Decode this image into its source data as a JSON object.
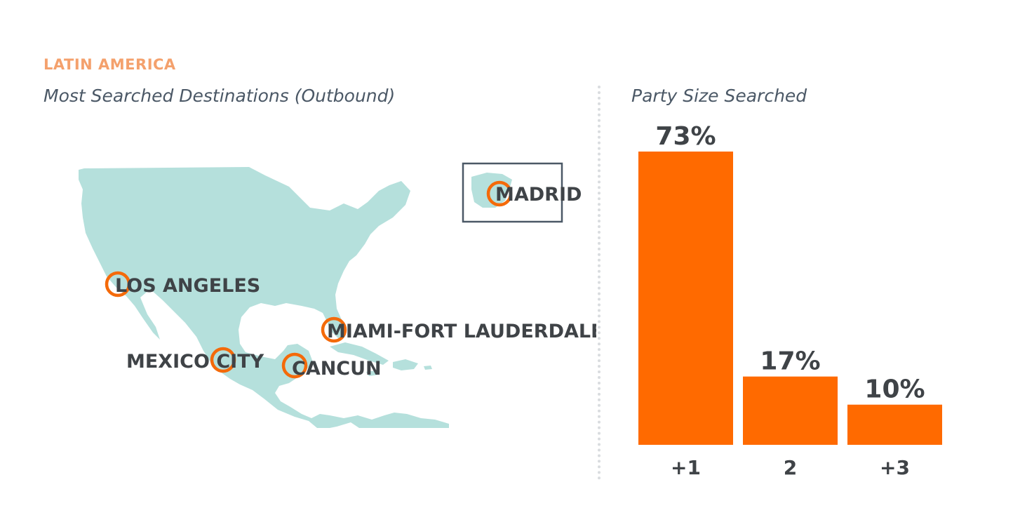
{
  "region_label": "LATIN  AMERICA",
  "map": {
    "title": "Most Searched Destinations (Outbound)",
    "land_color": "#b5e0dc",
    "marker_color": "#f46a0a",
    "box_color": "#4b5866",
    "destinations": [
      {
        "name": "LOS ANGELES"
      },
      {
        "name": "MIAMI-FORT LAUDERDALE"
      },
      {
        "name": "MEXICO CITY"
      },
      {
        "name": "CANCUN"
      },
      {
        "name": "MADRID"
      }
    ]
  },
  "chart_data": {
    "type": "bar",
    "title": "Party Size Searched",
    "categories": [
      "+1",
      "2",
      "+3"
    ],
    "values": [
      73,
      17,
      10
    ],
    "value_labels": [
      "73%",
      "17%",
      "10%"
    ],
    "ylim": [
      0,
      73
    ],
    "bar_color": "#ff6a00",
    "grid": false
  }
}
